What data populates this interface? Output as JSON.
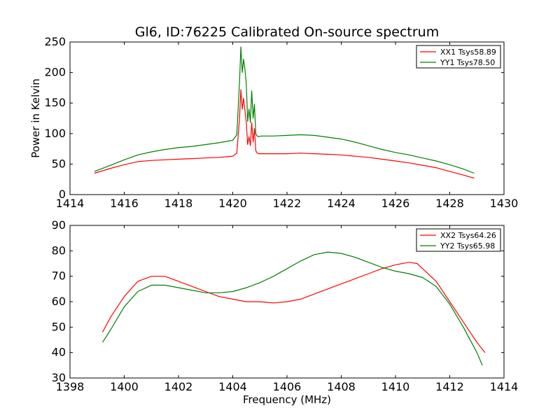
{
  "chart_data": [
    {
      "type": "line",
      "title": "Gl6, ID:76225 Calibrated On-source spectrum",
      "xlabel": "",
      "ylabel": "Power in Kelvin",
      "xlim": [
        1414,
        1430
      ],
      "ylim": [
        0,
        250
      ],
      "xticks": [
        "1414",
        "1416",
        "1418",
        "1420",
        "1422",
        "1424",
        "1426",
        "1428",
        "1430"
      ],
      "yticks": [
        "0",
        "50",
        "100",
        "150",
        "200",
        "250"
      ],
      "legend_position": "top-right",
      "series": [
        {
          "name": "XX1 Tsys58.89",
          "color": "#ff0000",
          "x": [
            1414.9,
            1415.5,
            1416.0,
            1416.5,
            1417.0,
            1417.5,
            1418.0,
            1418.5,
            1419.0,
            1419.5,
            1420.0,
            1420.15,
            1420.25,
            1420.3,
            1420.35,
            1420.4,
            1420.45,
            1420.5,
            1420.55,
            1420.6,
            1420.65,
            1420.7,
            1420.75,
            1420.8,
            1420.85,
            1420.9,
            1420.95,
            1421.05,
            1421.2,
            1421.5,
            1422.0,
            1422.5,
            1423.0,
            1423.5,
            1424.0,
            1424.5,
            1425.0,
            1425.5,
            1426.0,
            1426.5,
            1427.0,
            1427.5,
            1428.0,
            1428.5,
            1428.9
          ],
          "values": [
            35,
            43,
            49,
            54,
            56,
            57,
            58,
            59,
            60,
            61,
            63,
            68,
            125,
            172,
            140,
            158,
            138,
            118,
            82,
            95,
            80,
            118,
            86,
            108,
            72,
            68,
            67,
            67,
            67,
            67,
            67,
            68,
            67,
            66,
            65,
            63,
            61,
            58,
            55,
            52,
            48,
            44,
            38,
            32,
            27
          ]
        },
        {
          "name": "YY1 Tsys78.50",
          "color": "#008000",
          "x": [
            1414.9,
            1415.5,
            1416.0,
            1416.5,
            1417.0,
            1417.5,
            1418.0,
            1418.5,
            1419.0,
            1419.5,
            1420.0,
            1420.15,
            1420.25,
            1420.3,
            1420.35,
            1420.4,
            1420.45,
            1420.5,
            1420.55,
            1420.6,
            1420.65,
            1420.7,
            1420.75,
            1420.8,
            1420.85,
            1420.9,
            1420.95,
            1421.05,
            1421.2,
            1421.5,
            1422.0,
            1422.5,
            1423.0,
            1423.5,
            1424.0,
            1424.5,
            1425.0,
            1425.5,
            1426.0,
            1426.5,
            1427.0,
            1427.5,
            1428.0,
            1428.5,
            1428.9
          ],
          "values": [
            38,
            48,
            57,
            65,
            70,
            74,
            77,
            79,
            82,
            85,
            89,
            98,
            185,
            242,
            200,
            222,
            205,
            180,
            120,
            140,
            118,
            170,
            125,
            148,
            100,
            96,
            95,
            96,
            96,
            96,
            97,
            98,
            97,
            94,
            91,
            86,
            80,
            74,
            69,
            65,
            60,
            55,
            49,
            42,
            35
          ]
        }
      ]
    },
    {
      "type": "line",
      "title": "",
      "xlabel": "Frequency (MHz)",
      "ylabel": "",
      "xlim": [
        1398,
        1414
      ],
      "ylim": [
        30,
        90
      ],
      "xticks": [
        "1398",
        "1400",
        "1402",
        "1404",
        "1406",
        "1408",
        "1410",
        "1412",
        "1414"
      ],
      "yticks": [
        "30",
        "40",
        "50",
        "60",
        "70",
        "80",
        "90"
      ],
      "legend_position": "top-right",
      "series": [
        {
          "name": "XX2 Tsys64.26",
          "color": "#ff0000",
          "x": [
            1399.2,
            1399.5,
            1400.0,
            1400.5,
            1401.0,
            1401.5,
            1402.0,
            1402.5,
            1403.0,
            1403.5,
            1404.0,
            1404.5,
            1405.0,
            1405.5,
            1406.0,
            1406.5,
            1407.0,
            1407.5,
            1408.0,
            1408.5,
            1409.0,
            1409.5,
            1410.0,
            1410.5,
            1410.8,
            1411.0,
            1411.5,
            1412.0,
            1412.5,
            1413.0,
            1413.3
          ],
          "values": [
            48,
            54,
            62,
            68,
            70,
            70,
            68,
            66,
            64,
            62,
            61,
            60,
            60,
            59.5,
            60,
            61,
            63,
            65,
            67,
            69,
            71,
            73,
            74.5,
            75.5,
            75,
            73,
            68,
            60,
            52,
            44,
            40
          ]
        },
        {
          "name": "YY2 Tsys65.98",
          "color": "#008000",
          "x": [
            1399.2,
            1399.5,
            1400.0,
            1400.5,
            1401.0,
            1401.5,
            1402.0,
            1402.5,
            1403.0,
            1403.5,
            1404.0,
            1404.5,
            1405.0,
            1405.5,
            1406.0,
            1406.5,
            1407.0,
            1407.5,
            1408.0,
            1408.5,
            1409.0,
            1409.5,
            1410.0,
            1410.5,
            1411.0,
            1411.5,
            1412.0,
            1412.5,
            1413.0,
            1413.2
          ],
          "values": [
            44,
            49,
            58,
            64,
            66.5,
            66.5,
            65.5,
            64.5,
            63.5,
            63.5,
            64,
            65.5,
            67.5,
            70,
            73,
            76,
            78.5,
            79.5,
            79,
            77.5,
            75.5,
            73.5,
            72,
            71,
            69.5,
            66,
            59,
            50,
            40,
            35
          ]
        }
      ]
    }
  ]
}
